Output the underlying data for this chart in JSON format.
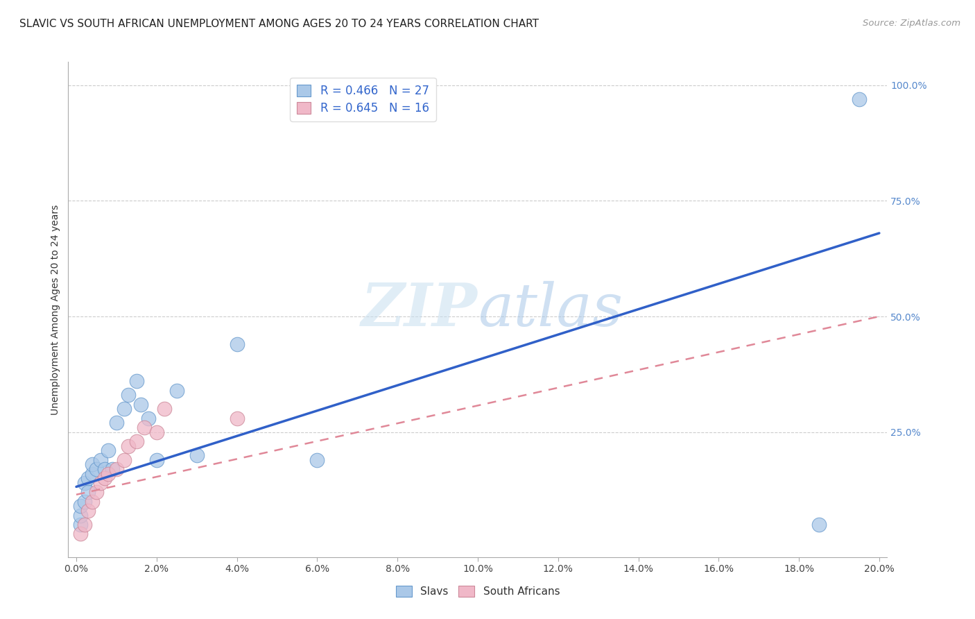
{
  "title": "SLAVIC VS SOUTH AFRICAN UNEMPLOYMENT AMONG AGES 20 TO 24 YEARS CORRELATION CHART",
  "source": "Source: ZipAtlas.com",
  "xlabel_ticks": [
    "0.0%",
    "2.0%",
    "4.0%",
    "6.0%",
    "8.0%",
    "10.0%",
    "12.0%",
    "14.0%",
    "16.0%",
    "18.0%",
    "20.0%"
  ],
  "xlabel_vals": [
    0.0,
    0.02,
    0.04,
    0.06,
    0.08,
    0.1,
    0.12,
    0.14,
    0.16,
    0.18,
    0.2
  ],
  "ylabel_ticks": [
    "100.0%",
    "75.0%",
    "50.0%",
    "25.0%"
  ],
  "ylabel_vals": [
    1.0,
    0.75,
    0.5,
    0.25
  ],
  "xlim": [
    -0.002,
    0.202
  ],
  "ylim": [
    -0.02,
    1.05
  ],
  "ylabel": "Unemployment Among Ages 20 to 24 years",
  "slavs_color": "#aac8e8",
  "south_african_color": "#f0b8c8",
  "slavs_line_color": "#3060c8",
  "south_african_line_color": "#e08898",
  "legend_r_slavs": "R = 0.466",
  "legend_n_slavs": "N = 27",
  "legend_r_sa": "R = 0.645",
  "legend_n_sa": "N = 16",
  "slavs_x": [
    0.001,
    0.001,
    0.001,
    0.002,
    0.002,
    0.003,
    0.003,
    0.004,
    0.004,
    0.005,
    0.006,
    0.007,
    0.008,
    0.009,
    0.01,
    0.012,
    0.013,
    0.015,
    0.016,
    0.018,
    0.02,
    0.025,
    0.03,
    0.04,
    0.06,
    0.185,
    0.195
  ],
  "slavs_y": [
    0.05,
    0.07,
    0.09,
    0.1,
    0.14,
    0.12,
    0.15,
    0.16,
    0.18,
    0.17,
    0.19,
    0.17,
    0.21,
    0.17,
    0.27,
    0.3,
    0.33,
    0.36,
    0.31,
    0.28,
    0.19,
    0.34,
    0.2,
    0.44,
    0.19,
    0.05,
    0.97
  ],
  "sa_x": [
    0.001,
    0.002,
    0.003,
    0.004,
    0.005,
    0.006,
    0.007,
    0.008,
    0.01,
    0.012,
    0.013,
    0.015,
    0.017,
    0.02,
    0.022,
    0.04
  ],
  "sa_y": [
    0.03,
    0.05,
    0.08,
    0.1,
    0.12,
    0.14,
    0.15,
    0.16,
    0.17,
    0.19,
    0.22,
    0.23,
    0.26,
    0.25,
    0.3,
    0.28
  ],
  "slavs_trend": [
    0.0,
    0.132,
    0.2,
    0.68
  ],
  "sa_trend": [
    0.0,
    0.115,
    0.2,
    0.5
  ],
  "watermark_zip": "ZIP",
  "watermark_atlas": "atlas",
  "background_color": "#ffffff",
  "grid_color": "#cccccc",
  "axis_color": "#aaaaaa"
}
